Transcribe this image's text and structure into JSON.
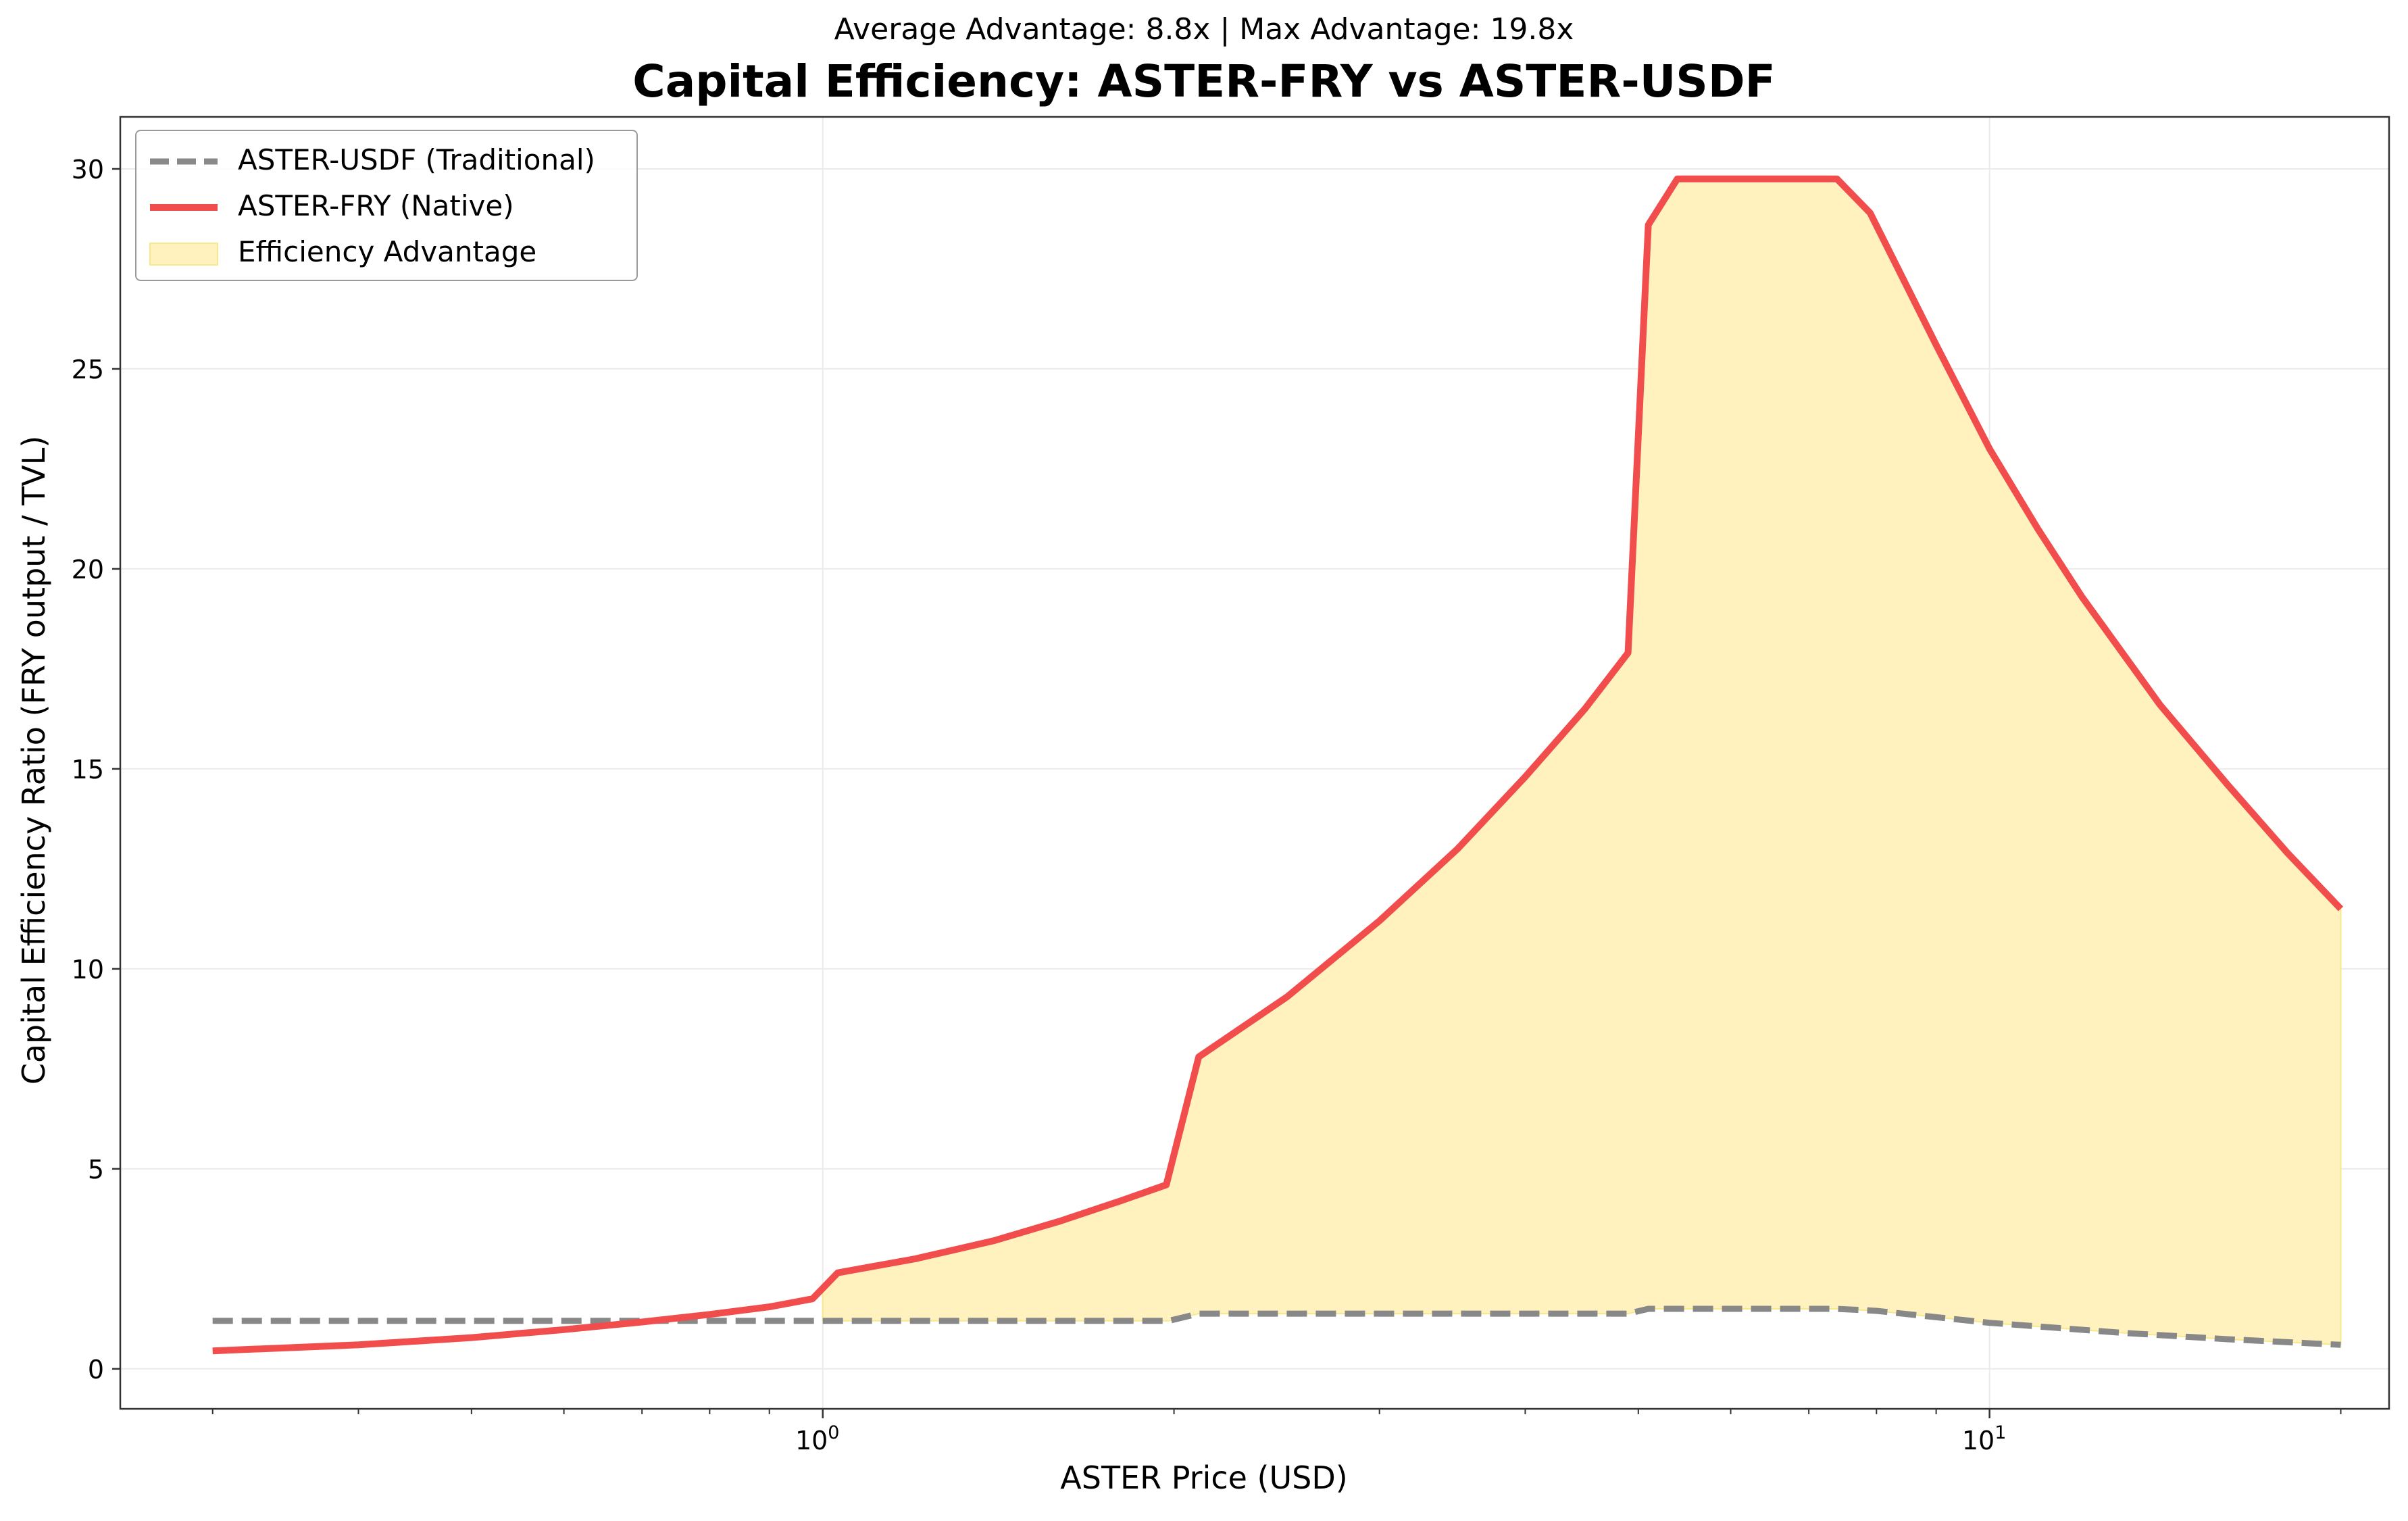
{
  "subtitle": "Average Advantage: 8.8x | Max Advantage: 19.8x",
  "chart_data": {
    "type": "line",
    "title": "Capital Efficiency: ASTER-FRY vs ASTER-USDF",
    "xlabel": "ASTER Price (USD)",
    "ylabel": "Capital Efficiency Ratio (FRY output / TVL)",
    "xscale": "log",
    "xlim": [
      0.25,
      22
    ],
    "ylim": [
      -1,
      31.3
    ],
    "yticks": [
      0,
      5,
      10,
      15,
      20,
      25,
      30
    ],
    "xticks": [
      {
        "value": 1,
        "label": "10^0"
      },
      {
        "value": 10,
        "label": "10^1"
      }
    ],
    "grid": true,
    "legend_position": "top-left",
    "colors": {
      "usdf": "#888888",
      "fry": "#f24d4d",
      "fill": "#fff2bf",
      "fill_edge": "#f7e88a"
    },
    "series": [
      {
        "name": "ASTER-USDF (Traditional)",
        "style": "dashed",
        "points": [
          [
            0.3,
            1.2
          ],
          [
            0.5,
            1.2
          ],
          [
            1.0,
            1.2
          ],
          [
            1.5,
            1.2
          ],
          [
            1.98,
            1.2
          ],
          [
            2.1,
            1.38
          ],
          [
            3.0,
            1.38
          ],
          [
            4.0,
            1.38
          ],
          [
            4.9,
            1.38
          ],
          [
            5.1,
            1.5
          ],
          [
            6.0,
            1.5
          ],
          [
            7.4,
            1.5
          ],
          [
            8.0,
            1.45
          ],
          [
            10.0,
            1.15
          ],
          [
            13.0,
            0.9
          ],
          [
            16.0,
            0.74
          ],
          [
            20.0,
            0.6
          ]
        ]
      },
      {
        "name": "ASTER-FRY (Native)",
        "style": "solid",
        "points": [
          [
            0.3,
            0.45
          ],
          [
            0.4,
            0.6
          ],
          [
            0.5,
            0.78
          ],
          [
            0.6,
            0.98
          ],
          [
            0.7,
            1.17
          ],
          [
            0.8,
            1.36
          ],
          [
            0.9,
            1.55
          ],
          [
            0.98,
            1.75
          ],
          [
            1.03,
            2.4
          ],
          [
            1.2,
            2.75
          ],
          [
            1.4,
            3.2
          ],
          [
            1.6,
            3.7
          ],
          [
            1.8,
            4.2
          ],
          [
            1.97,
            4.6
          ],
          [
            2.1,
            7.8
          ],
          [
            2.5,
            9.3
          ],
          [
            3.0,
            11.2
          ],
          [
            3.5,
            13.0
          ],
          [
            4.0,
            14.8
          ],
          [
            4.5,
            16.5
          ],
          [
            4.9,
            17.9
          ],
          [
            5.1,
            28.6
          ],
          [
            5.4,
            29.75
          ],
          [
            6.0,
            29.75
          ],
          [
            7.0,
            29.75
          ],
          [
            7.4,
            29.75
          ],
          [
            7.9,
            28.9
          ],
          [
            9.0,
            25.6
          ],
          [
            10.0,
            23.0
          ],
          [
            11.0,
            21.0
          ],
          [
            12.0,
            19.3
          ],
          [
            14.0,
            16.6
          ],
          [
            16.0,
            14.6
          ],
          [
            18.0,
            12.9
          ],
          [
            20.0,
            11.5
          ]
        ]
      }
    ],
    "fill_between": {
      "name": "Efficiency Advantage",
      "from": 1.0,
      "to": 20.0
    }
  }
}
